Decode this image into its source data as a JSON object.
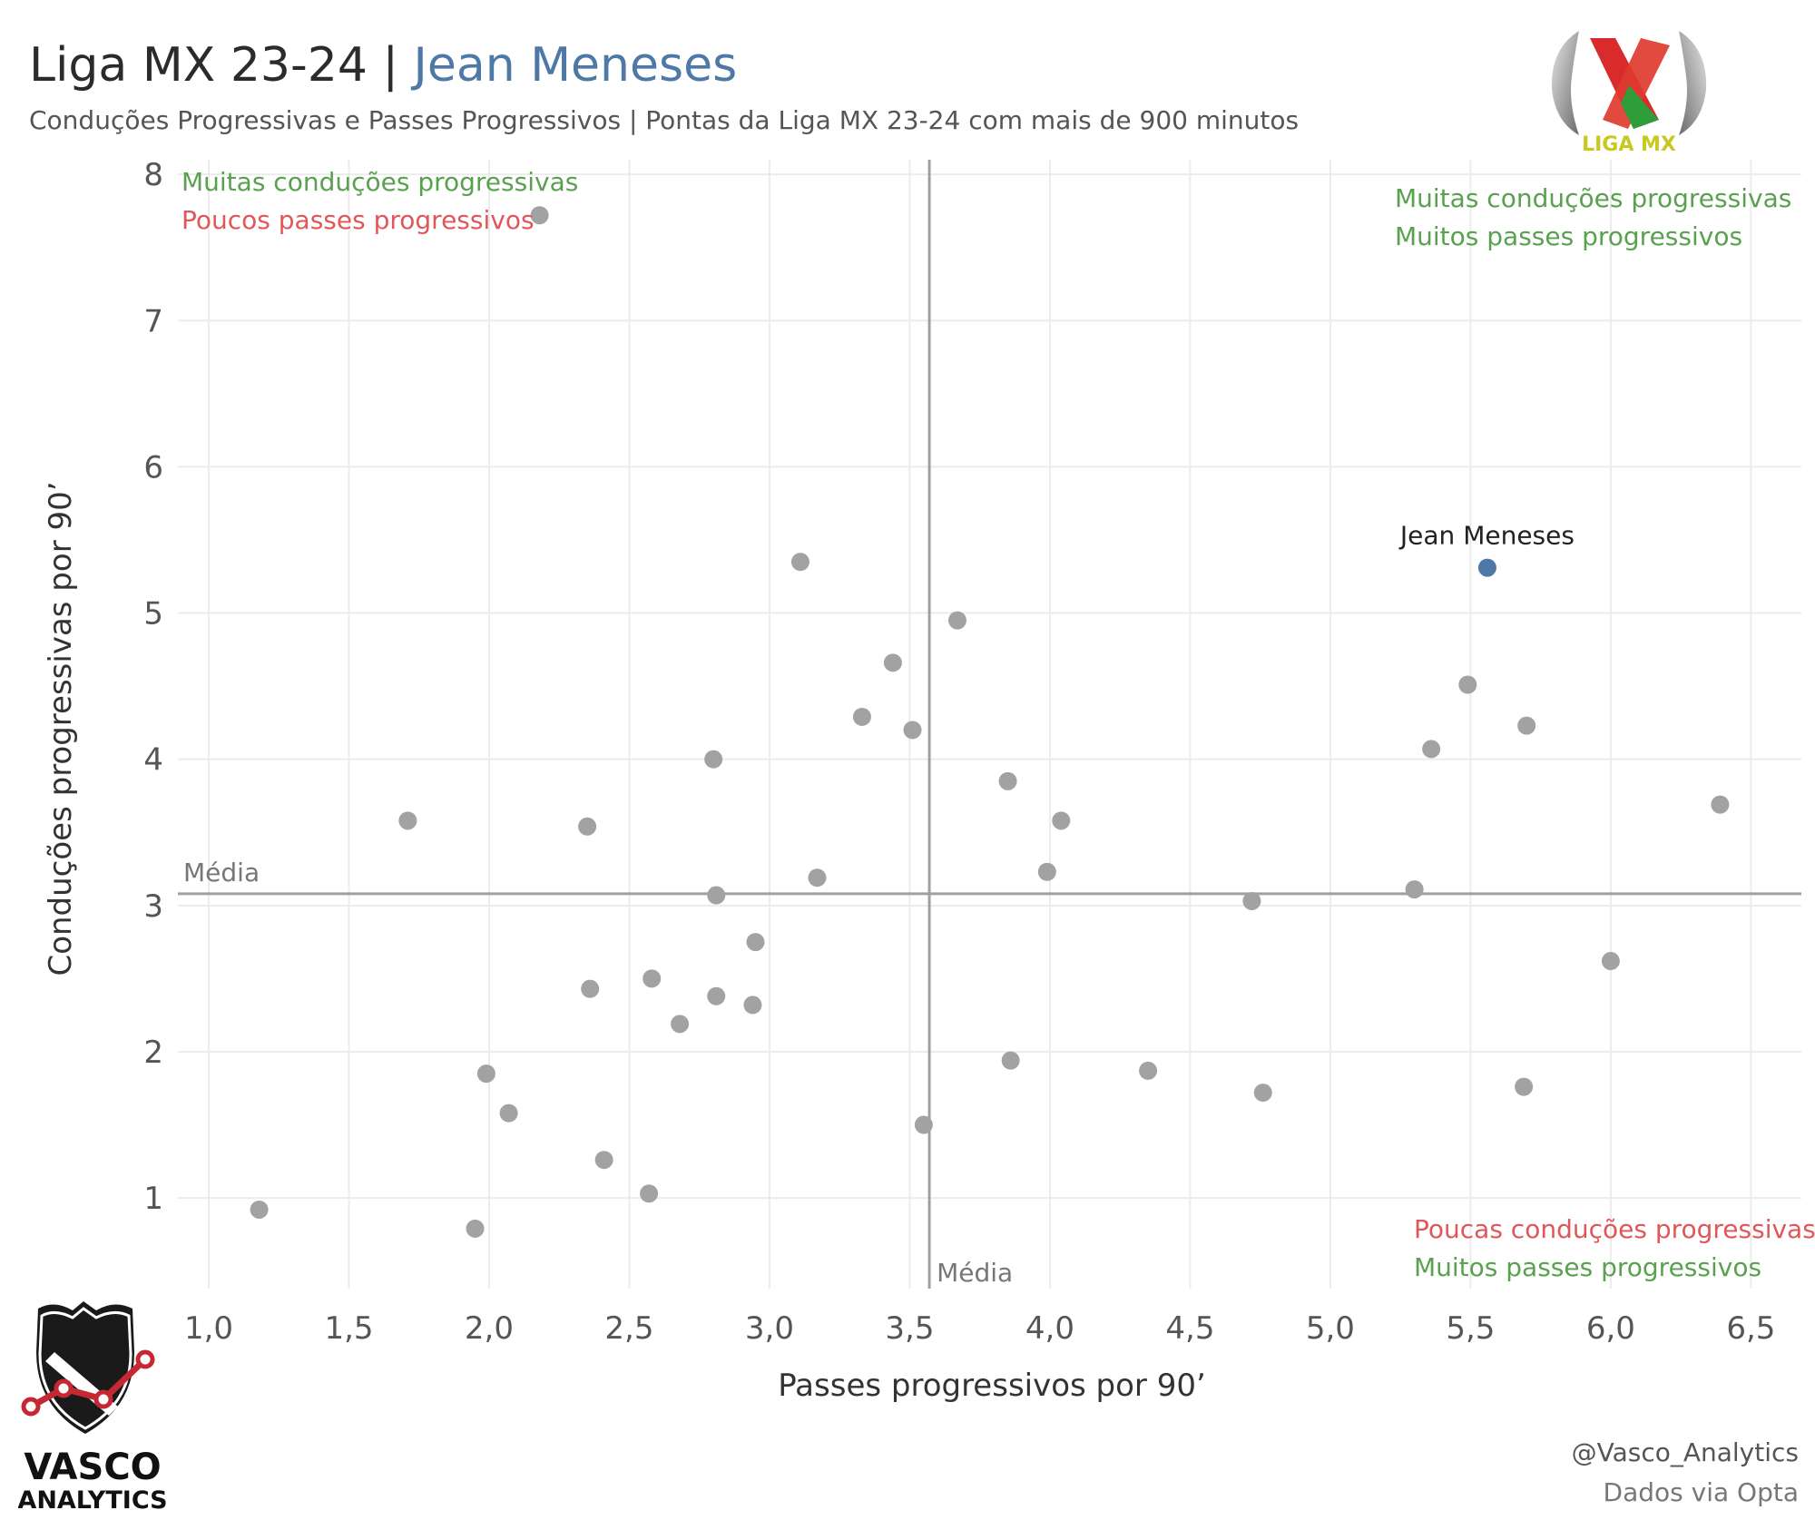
{
  "header": {
    "title_main": "Liga MX 23-24 | ",
    "title_player": "Jean Meneses",
    "subtitle": "Conduções Progressivas e Passes Progressivos  | Pontas da Liga MX 23-24 com mais de 900 minutos"
  },
  "logos": {
    "liga_mx_text": "LIGA MX",
    "vasco_line1": "VASCO",
    "vasco_line2": "ANALYTICS"
  },
  "footer": {
    "handle": "@Vasco_Analytics",
    "source": "Dados via Opta"
  },
  "colors": {
    "point": "#a2a2a2",
    "highlight": "#4e79a7",
    "green": "#59a14f",
    "red": "#e15759",
    "ref_line": "#a0a0a0"
  },
  "chart_data": {
    "type": "scatter",
    "xlabel": "Passes progressivos por 90’",
    "ylabel": "Conduções progressivas por 90’",
    "xlim": [
      0.89,
      6.68
    ],
    "ylim": [
      0.38,
      8.1
    ],
    "xticks": [
      "1,0",
      "1,5",
      "2,0",
      "2,5",
      "3,0",
      "3,5",
      "4,0",
      "4,5",
      "5,0",
      "5,5",
      "6,0",
      "6,5"
    ],
    "xtick_values": [
      1.0,
      1.5,
      2.0,
      2.5,
      3.0,
      3.5,
      4.0,
      4.5,
      5.0,
      5.5,
      6.0,
      6.5
    ],
    "yticks": [
      "1",
      "2",
      "3",
      "4",
      "5",
      "6",
      "7",
      "8"
    ],
    "ytick_values": [
      1,
      2,
      3,
      4,
      5,
      6,
      7,
      8
    ],
    "grid": true,
    "reference_lines": {
      "x_mean": 3.57,
      "y_mean": 3.08,
      "x_label": "Média",
      "y_label": "Média"
    },
    "quadrant_labels": {
      "top_left": [
        "Muitas conduções progressivas",
        "Poucos passes progressivos"
      ],
      "top_right": [
        "Muitas conduções progressivas",
        "Muitos passes progressivos"
      ],
      "bottom_right": [
        "Poucas conduções progressivas",
        "Muitos passes progressivos"
      ]
    },
    "highlight": {
      "name": "Jean Meneses",
      "x": 5.56,
      "y": 5.31
    },
    "points": [
      {
        "x": 2.18,
        "y": 7.72
      },
      {
        "x": 3.11,
        "y": 5.35
      },
      {
        "x": 3.67,
        "y": 4.95
      },
      {
        "x": 3.44,
        "y": 4.66
      },
      {
        "x": 3.33,
        "y": 4.29
      },
      {
        "x": 3.51,
        "y": 4.2
      },
      {
        "x": 2.8,
        "y": 4.0
      },
      {
        "x": 3.85,
        "y": 3.85
      },
      {
        "x": 4.04,
        "y": 3.58
      },
      {
        "x": 1.71,
        "y": 3.58
      },
      {
        "x": 2.35,
        "y": 3.54
      },
      {
        "x": 3.99,
        "y": 3.23
      },
      {
        "x": 3.17,
        "y": 3.19
      },
      {
        "x": 2.81,
        "y": 3.07
      },
      {
        "x": 4.72,
        "y": 3.03
      },
      {
        "x": 2.95,
        "y": 2.75
      },
      {
        "x": 2.58,
        "y": 2.5
      },
      {
        "x": 2.36,
        "y": 2.43
      },
      {
        "x": 2.81,
        "y": 2.38
      },
      {
        "x": 2.94,
        "y": 2.32
      },
      {
        "x": 2.68,
        "y": 2.19
      },
      {
        "x": 1.99,
        "y": 1.85
      },
      {
        "x": 2.07,
        "y": 1.58
      },
      {
        "x": 2.41,
        "y": 1.26
      },
      {
        "x": 2.57,
        "y": 1.03
      },
      {
        "x": 1.18,
        "y": 0.92
      },
      {
        "x": 1.95,
        "y": 0.79
      },
      {
        "x": 3.55,
        "y": 1.5
      },
      {
        "x": 3.86,
        "y": 1.94
      },
      {
        "x": 4.35,
        "y": 1.87
      },
      {
        "x": 4.76,
        "y": 1.72
      },
      {
        "x": 5.49,
        "y": 4.51
      },
      {
        "x": 5.36,
        "y": 4.07
      },
      {
        "x": 5.7,
        "y": 4.23
      },
      {
        "x": 5.3,
        "y": 3.11
      },
      {
        "x": 6.39,
        "y": 3.69
      },
      {
        "x": 6.0,
        "y": 2.62
      },
      {
        "x": 5.69,
        "y": 1.76
      }
    ]
  }
}
